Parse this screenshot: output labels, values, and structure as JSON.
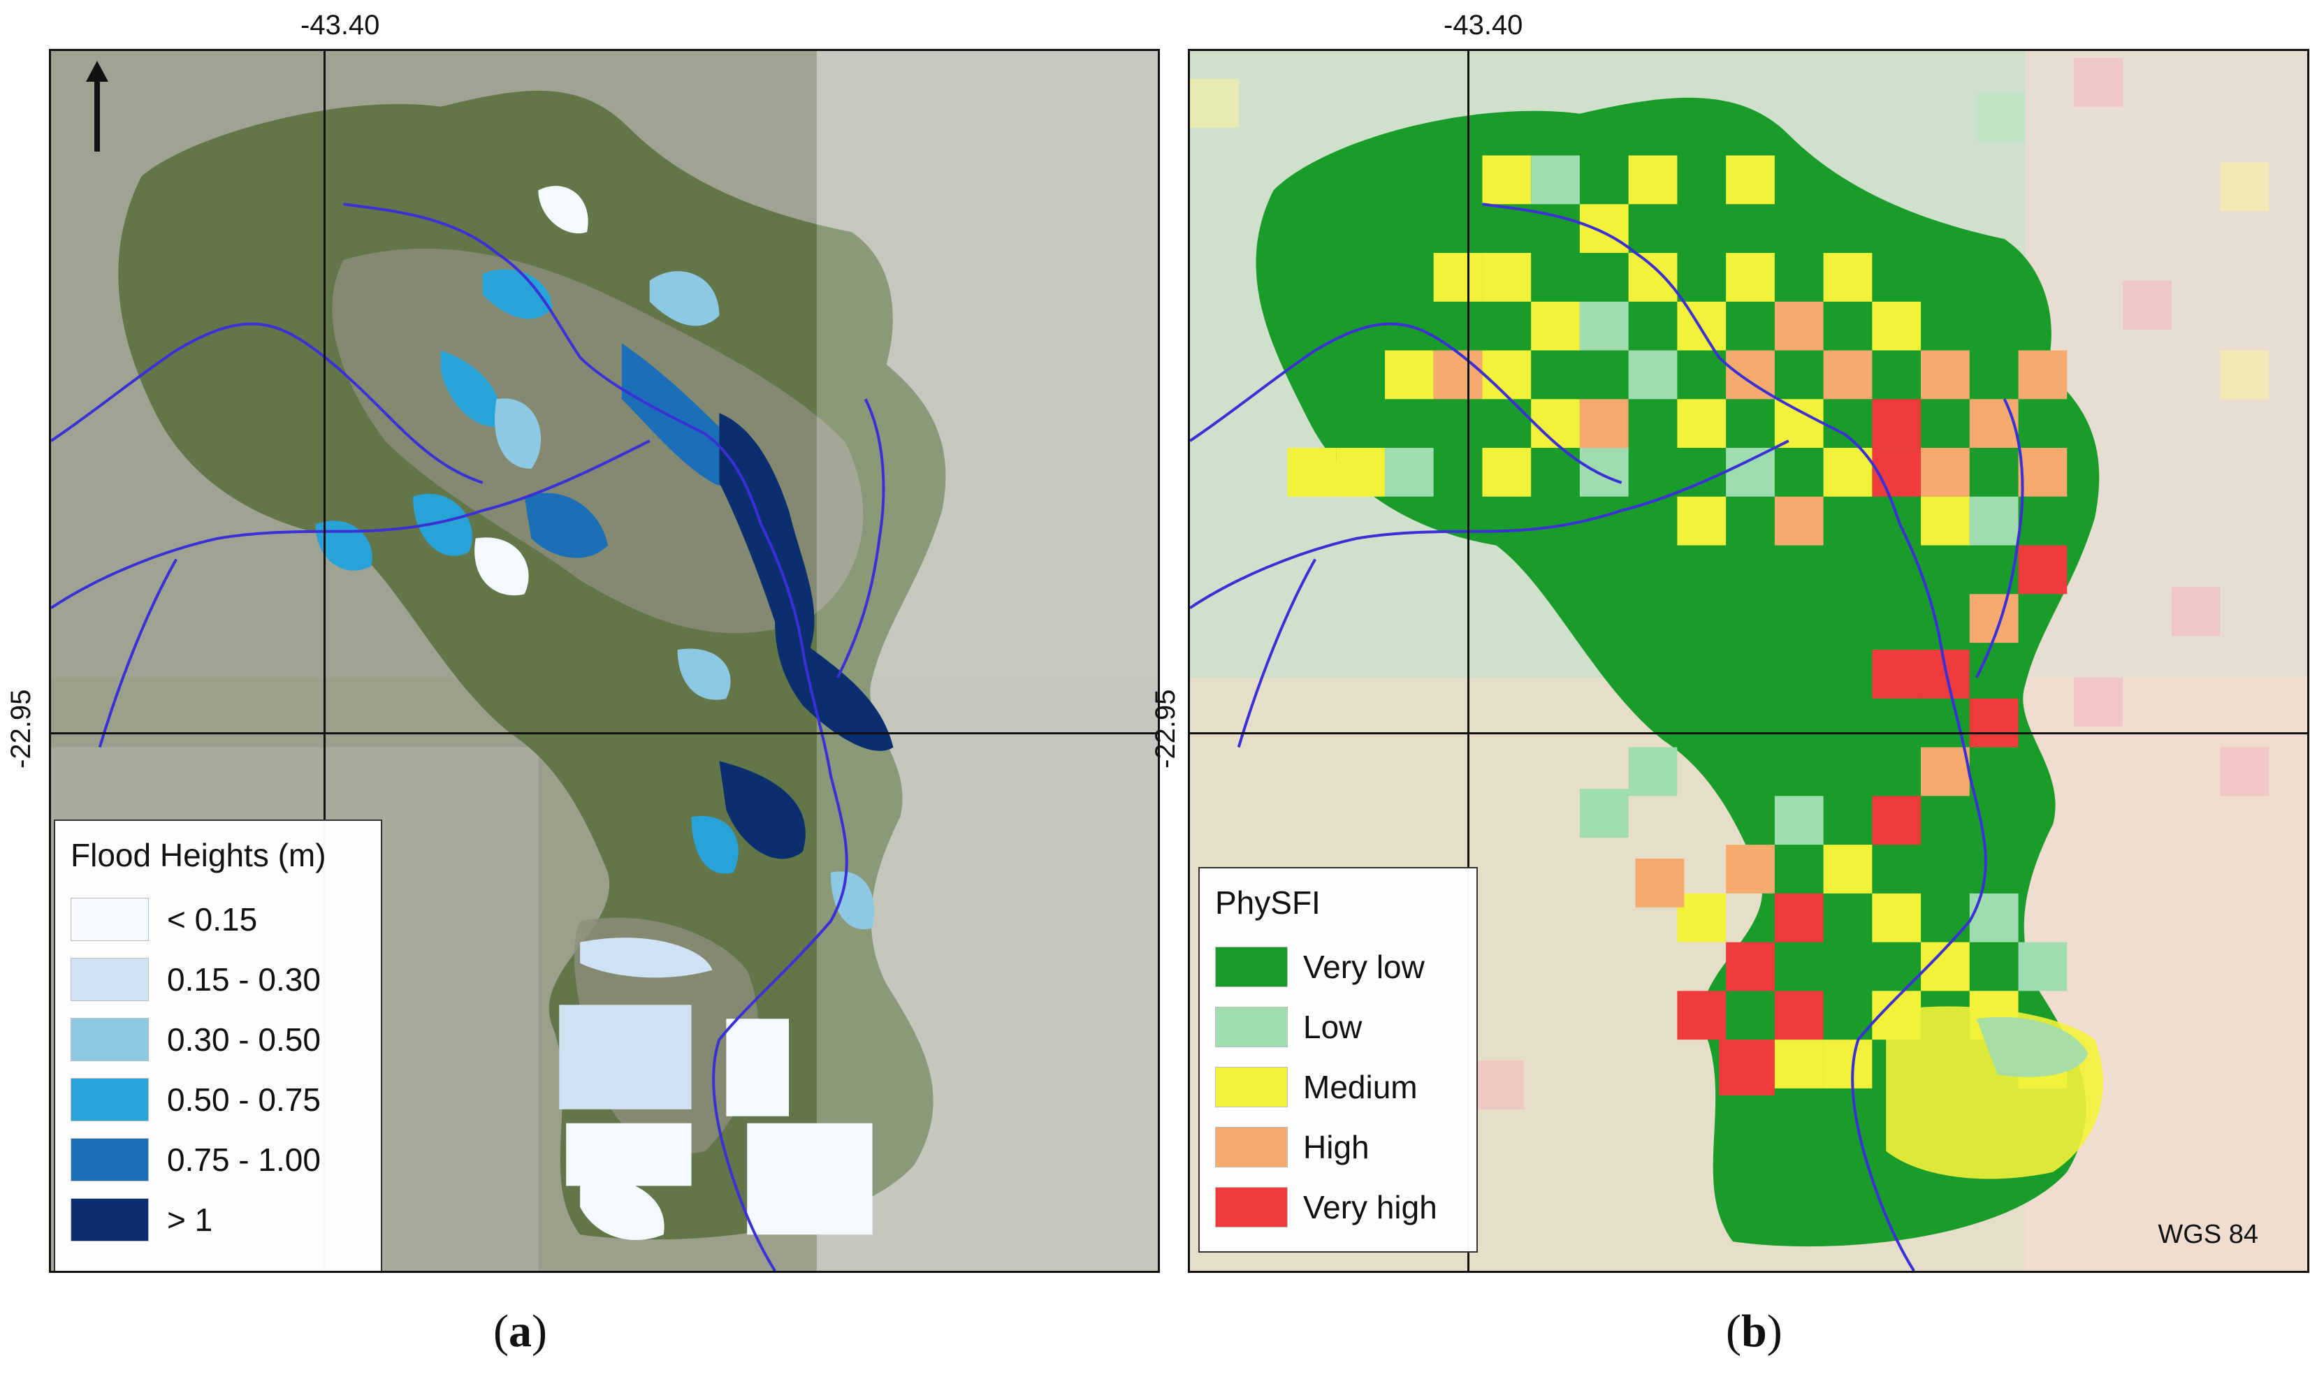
{
  "panel_a": {
    "caption_letter": "a",
    "lon_label": "-43.40",
    "lat_label": "-22.95",
    "legend": {
      "title": "Flood Heights (m)",
      "items": [
        {
          "label": "< 0.15",
          "color": "#f4f9ff"
        },
        {
          "label": "0.15 - 0.30",
          "color": "#cfe2f3"
        },
        {
          "label": "0.30 - 0.50",
          "color": "#8ec9e4"
        },
        {
          "label": "0.50 - 0.75",
          "color": "#28a3d8"
        },
        {
          "label": "0.75 - 1.00",
          "color": "#1b6fb8"
        },
        {
          "label": "> 1",
          "color": "#0b2f6e"
        }
      ]
    }
  },
  "panel_b": {
    "caption_letter": "b",
    "lon_label": "-43.40",
    "lat_label": "-22.95",
    "crs_label": "WGS 84",
    "legend": {
      "title": "PhySFI",
      "items": [
        {
          "label": "Very low",
          "color": "#1a9c2a"
        },
        {
          "label": "Low",
          "color": "#9fdcb0"
        },
        {
          "label": "Medium",
          "color": "#f2f23a"
        },
        {
          "label": "High",
          "color": "#f6ab6e"
        },
        {
          "label": "Very high",
          "color": "#ee3b3b"
        }
      ]
    }
  },
  "colors": {
    "river": "#3b2fd6",
    "grid_line": "#111111",
    "basemap": "#8a8f7e",
    "forest": "#4f6a3c"
  },
  "icons": [
    "north-arrow-icon"
  ]
}
